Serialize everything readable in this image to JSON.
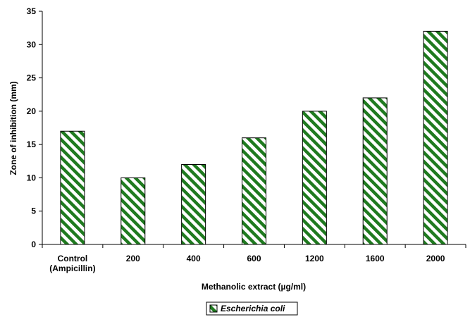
{
  "chart_data": {
    "type": "bar",
    "title": "",
    "xlabel": "Methanolic extract (µg/ml)",
    "ylabel": "Zone of inhibition (mm)",
    "categories": [
      [
        "Control",
        "(Ampicillin)"
      ],
      [
        "200"
      ],
      [
        "400"
      ],
      [
        "600"
      ],
      [
        "1200"
      ],
      [
        "1600"
      ],
      [
        "2000"
      ]
    ],
    "series": [
      {
        "name": "Escherichia coli",
        "values": [
          17,
          10,
          12,
          16,
          20,
          22,
          32
        ],
        "color": "#1f7a1f",
        "pattern": "diagonal-stripes"
      }
    ],
    "ylim": [
      0,
      35
    ],
    "yticks": [
      0,
      5,
      10,
      15,
      20,
      25,
      30,
      35
    ],
    "grid": false,
    "legend_position": "bottom-center"
  }
}
